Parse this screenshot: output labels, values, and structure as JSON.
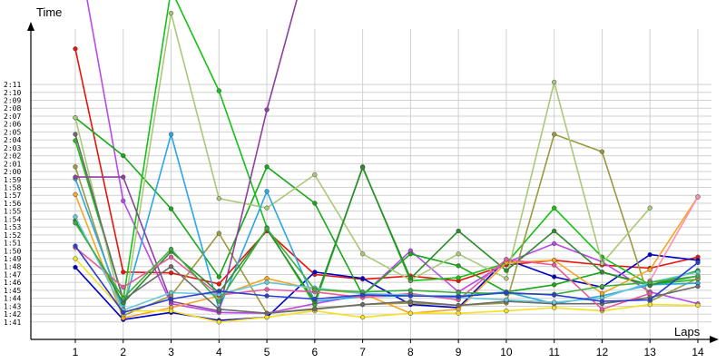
{
  "chart_data": {
    "type": "line",
    "title": "",
    "ylabel": "Time",
    "xlabel": "Laps",
    "x": [
      1,
      2,
      3,
      4,
      5,
      6,
      7,
      8,
      9,
      10,
      11,
      12,
      13,
      14
    ],
    "xlim": [
      0,
      14.25
    ],
    "ylim_seconds": [
      98.8,
      138
    ],
    "y_unit": "seconds (tick labels shown as m:ss)",
    "y_ticks": [
      "1:41",
      "1:42",
      "1:43",
      "1:44",
      "1:45",
      "1:46",
      "1:47",
      "1:48",
      "1:49",
      "1:50",
      "1:51",
      "1:52",
      "1:53",
      "1:54",
      "1:55",
      "1:56",
      "1:57",
      "1:58",
      "1:59",
      "2:00",
      "2:01",
      "2:02",
      "2:03",
      "2:04",
      "2:05",
      "2:06",
      "2:07",
      "2:08",
      "2:09",
      "2:10",
      "2:11"
    ],
    "grid": true,
    "legend": "none",
    "series": [
      {
        "color": "#e8140c",
        "values": [
          135.5,
          107.3,
          107.2,
          105.8,
          112.5,
          107.0,
          106.4,
          106.8,
          106.2,
          108.2,
          108.8,
          108.2,
          107.8,
          109.2
        ]
      },
      {
        "color": "#0000c8",
        "values": [
          107.9,
          101.3,
          102.2,
          101.2,
          101.6,
          107.3,
          106.5,
          103.2,
          102.8,
          108.9,
          106.7,
          105.4,
          109.5,
          108.8
        ]
      },
      {
        "color": "#b94ae6",
        "values": [
          150,
          116.3,
          103.3,
          102.2,
          102.1,
          103.3,
          104.4,
          110.0,
          104.8,
          108.5,
          110.9,
          108.6,
          104.8,
          103.3
        ]
      },
      {
        "color": "#17a817",
        "values": [
          126.8,
          122.0,
          115.3,
          106.7,
          120.6,
          116.0,
          104.4,
          109.6,
          108.1,
          104.8,
          105.7,
          107.3,
          105.6,
          107.5
        ]
      },
      {
        "color": "#15c215",
        "values": [
          123.9,
          103.8,
          143,
          130.2,
          112.9,
          103.2,
          120.6,
          106.2,
          106.6,
          108.4,
          115.4,
          109.2,
          105.7,
          106.4
        ]
      },
      {
        "color": "#9a9a40",
        "values": [
          120.6,
          101.8,
          104.3,
          112.2,
          102.1,
          102.7,
          103.2,
          103.4,
          103.1,
          103.4,
          124.7,
          122.5,
          103.6,
          106.5
        ]
      },
      {
        "color": "#a9c978",
        "values": [
          126.8,
          101.8,
          140,
          116.6,
          115.4,
          119.6,
          109.6,
          106.3,
          109.6,
          106.5,
          131.3,
          108.4,
          115.4,
          null
        ]
      },
      {
        "color": "#2aa7e6",
        "values": [
          119.1,
          102.6,
          124.7,
          102.6,
          117.5,
          103.6,
          104.2,
          104.3,
          104.3,
          104.8,
          103.3,
          104.3,
          105.7,
          105.9
        ]
      },
      {
        "color": "#8e3fa1",
        "values": [
          119.3,
          119.3,
          103.6,
          102.4,
          127.8,
          150,
          null,
          null,
          null,
          null,
          null,
          null,
          null,
          null
        ]
      },
      {
        "color": "#2e8b2e",
        "values": [
          113.8,
          103.4,
          109.9,
          104.7,
          112.7,
          103.6,
          120.5,
          106.5,
          112.5,
          107.5,
          112.5,
          107.3,
          105.7,
          106.8
        ]
      },
      {
        "color": "#f5a623",
        "values": [
          117.1,
          101.5,
          102.8,
          104.3,
          106.5,
          105.1,
          104.6,
          102.1,
          102.6,
          108.5,
          108.8,
          104.6,
          107.6,
          116.8
        ]
      },
      {
        "color": "#f6e020",
        "values": [
          109.0,
          102.4,
          102.4,
          101.0,
          101.6,
          102.4,
          101.6,
          102.1,
          102.1,
          102.4,
          102.8,
          102.4,
          103.2,
          103.1
        ]
      },
      {
        "color": "#6b6b6b",
        "values": [
          124.7,
          103.8,
          108.0,
          102.6,
          102.1,
          102.6,
          103.2,
          103.6,
          103.1,
          103.6,
          103.3,
          103.3,
          104.1,
          105.5
        ]
      },
      {
        "color": "#e85aa0",
        "values": [
          110.4,
          105.4,
          109.2,
          104.4,
          105.1,
          104.8,
          104.1,
          104.6,
          103.8,
          108.9,
          108.2,
          102.6,
          104.6,
          null
        ]
      },
      {
        "color": "#ff8fb0",
        "values": [
          null,
          null,
          null,
          null,
          null,
          null,
          null,
          null,
          null,
          null,
          null,
          null,
          106.2,
          116.8
        ]
      },
      {
        "color": "#67c9d6",
        "values": [
          114.3,
          102.5,
          104.7,
          104.5,
          106.0,
          105.3,
          104.6,
          104.4,
          104.1,
          103.8,
          103.5,
          104.0,
          106.0,
          107.3
        ]
      },
      {
        "color": "#3cb03c",
        "values": [
          113.5,
          104.0,
          110.2,
          103.6,
          112.8,
          105.1,
          104.8,
          105.0,
          104.7,
          104.6,
          104.5,
          105.5,
          106.0,
          106.8
        ]
      },
      {
        "color": "#2a3fd1",
        "values": [
          110.6,
          102.2,
          103.9,
          104.9,
          104.3,
          103.9,
          104.4,
          104.3,
          104.2,
          104.7,
          104.4,
          103.6,
          103.8,
          108.5
        ]
      }
    ]
  }
}
